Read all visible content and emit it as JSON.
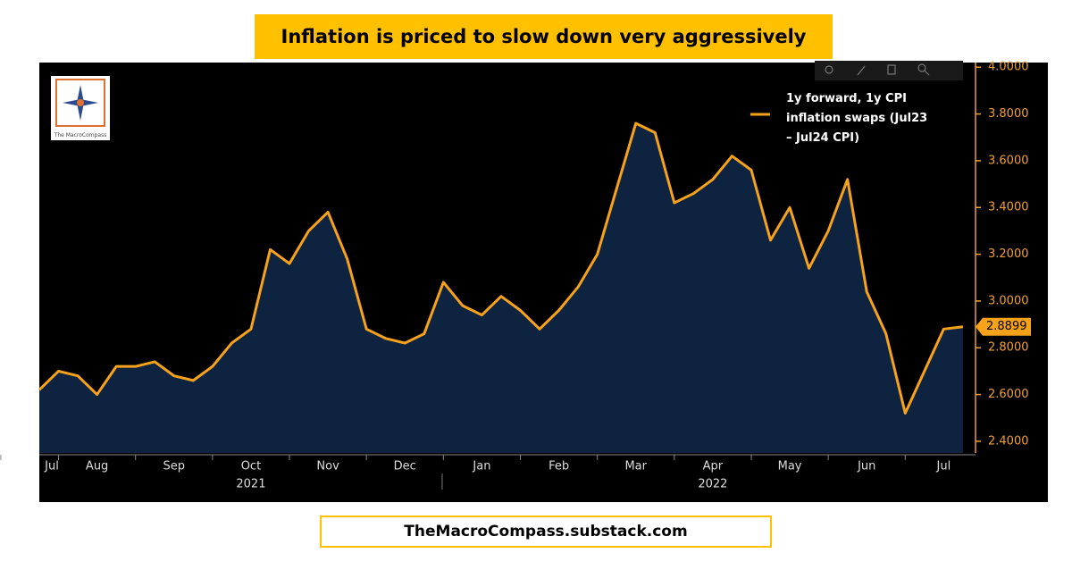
{
  "header": {
    "title": "Inflation is priced to slow down very aggressively"
  },
  "logo_text": "The MacroCompass",
  "footer": {
    "text": "TheMacroCompass.substack.com"
  },
  "chart_data": {
    "type": "area",
    "categories": [
      "Jul",
      null,
      null,
      "Aug",
      null,
      null,
      null,
      "Sep",
      null,
      null,
      null,
      "Oct",
      null,
      null,
      null,
      "Nov",
      null,
      null,
      null,
      "Dec",
      null,
      null,
      null,
      "Jan",
      null,
      null,
      null,
      "Feb",
      null,
      null,
      null,
      "Mar",
      null,
      null,
      null,
      "Apr",
      null,
      null,
      null,
      "May",
      null,
      null,
      null,
      "Jun",
      null,
      null,
      null,
      "Jul",
      null
    ],
    "years": [
      "2021",
      "2022"
    ],
    "series": [
      {
        "name": "1y forward, 1y CPI inflation swaps (Jul23 – Jul24 CPI)",
        "color": "#f7a21b",
        "fill": "#0e2340",
        "values": [
          2.62,
          2.7,
          2.68,
          2.6,
          2.72,
          2.72,
          2.74,
          2.68,
          2.66,
          2.72,
          2.82,
          2.88,
          3.22,
          3.16,
          3.3,
          3.38,
          3.18,
          2.88,
          2.84,
          2.82,
          2.86,
          3.08,
          2.98,
          2.94,
          3.02,
          2.96,
          2.88,
          2.96,
          3.06,
          3.2,
          3.48,
          3.76,
          3.72,
          3.42,
          3.46,
          3.52,
          3.62,
          3.56,
          3.26,
          3.4,
          3.14,
          3.3,
          3.52,
          3.04,
          2.86,
          2.52,
          2.7,
          2.88,
          2.8899
        ]
      }
    ],
    "ylim": [
      2.35,
      4.02
    ],
    "yticks": [
      {
        "value": 2.4,
        "label": "2.4000"
      },
      {
        "value": 2.6,
        "label": "2.6000"
      },
      {
        "value": 2.8,
        "label": "2.8000"
      },
      {
        "value": 3.0,
        "label": "3.0000"
      },
      {
        "value": 3.2,
        "label": "3.2000"
      },
      {
        "value": 3.4,
        "label": "3.4000"
      },
      {
        "value": 3.6,
        "label": "3.6000"
      },
      {
        "value": 3.8,
        "label": "3.8000"
      },
      {
        "value": 4.0,
        "label": "4.0000"
      }
    ],
    "axis_color": "#f0a030"
  }
}
